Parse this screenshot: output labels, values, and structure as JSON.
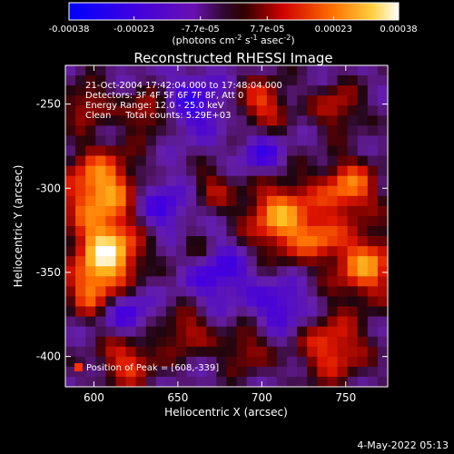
{
  "chart_data": {
    "type": "heatmap",
    "title": "Reconstructed RHESSI Image",
    "xlabel": "Heliocentric X (arcsec)",
    "ylabel": "Heliocentric Y (arcsec)",
    "xlim": [
      583,
      775
    ],
    "ylim": [
      -418,
      -227
    ],
    "x_ticks": [
      "600",
      "650",
      "700",
      "750"
    ],
    "x_tick_values": [
      600,
      650,
      700,
      750
    ],
    "y_ticks": [
      "-250",
      "-300",
      "-350",
      "-400"
    ],
    "y_tick_values": [
      -250,
      -300,
      -350,
      -400
    ],
    "colorbar": {
      "range": [
        -0.00038,
        0.00038
      ],
      "tick_labels": [
        "-0.00038",
        "-0.00023",
        "-7.7e-05",
        "7.7e-05",
        "0.00023",
        "0.00038"
      ],
      "tick_values": [
        -0.00038,
        -0.00023,
        -7.7e-05,
        7.7e-05,
        0.00023,
        0.00038
      ],
      "unit_label": "(photons cm-2 s-1 asec-2)",
      "unit_parts": [
        "(photons cm",
        "-2",
        " s",
        "-1",
        " asec",
        "-2",
        ")"
      ],
      "colormap": [
        "#0000ff",
        "#5a00b4",
        "#3a0a20",
        "#ff0000",
        "#ff8c00",
        "#ffffff"
      ]
    },
    "annotations": [
      "21-Oct-2004 17:42:04.000 to 17:48:04.000",
      "Detectors: 3F 4F 5F 6F 7F 8F, Att 0",
      "Energy Range: 12.0 - 25.0 keV",
      "Clean     Total counts: 5.29E+03"
    ],
    "peak_label": "Position of Peak = [608,-339]",
    "peak_position": [
      608,
      -339
    ]
  },
  "footer_date": "4-May-2022 05:13"
}
